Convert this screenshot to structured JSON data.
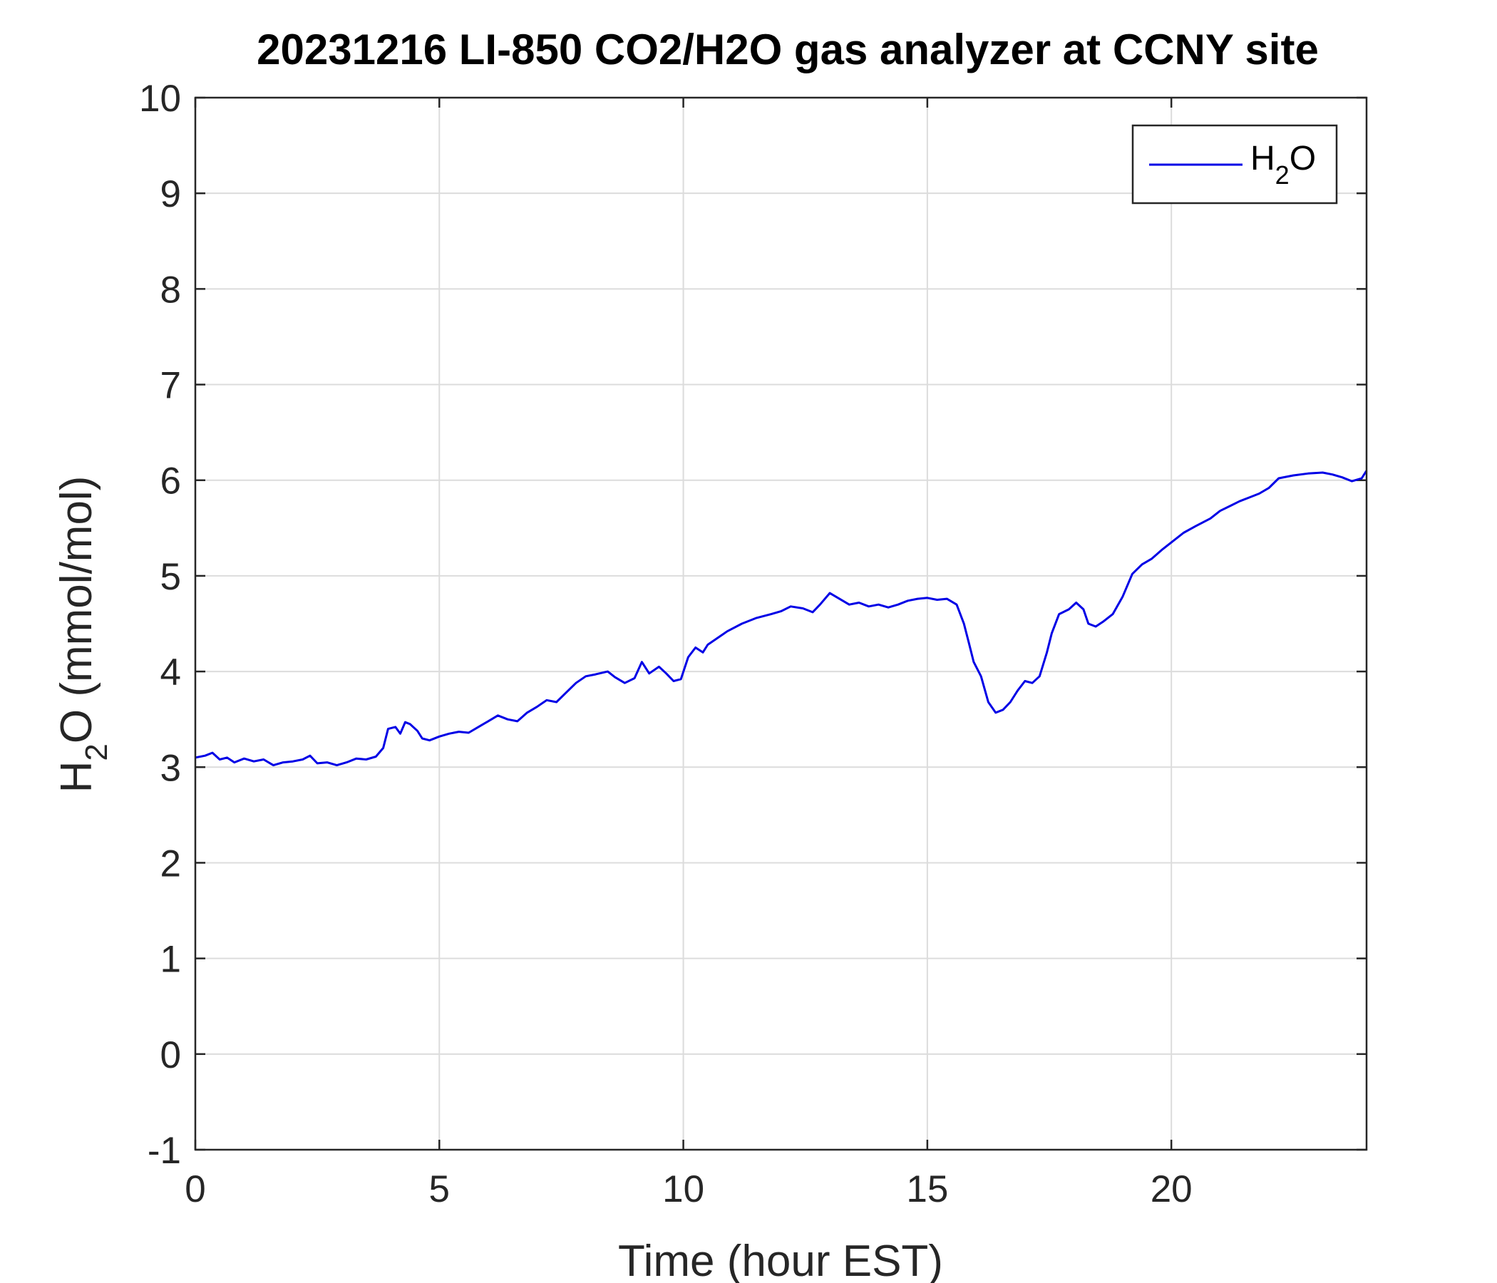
{
  "chart_data": {
    "type": "line",
    "title": "20231216 LI-850 CO2/H2O gas analyzer at CCNY site",
    "xlabel": "Time (hour EST)",
    "ylabel": {
      "main": "H",
      "sub": "2",
      "rest": "O (mmol/mol)"
    },
    "xlim": [
      0,
      24
    ],
    "ylim": [
      -1,
      10
    ],
    "xticks": [
      0,
      5,
      10,
      15,
      20
    ],
    "yticks": [
      -1,
      0,
      1,
      2,
      3,
      4,
      5,
      6,
      7,
      8,
      9,
      10
    ],
    "grid": true,
    "legend_position": "top-right",
    "series": [
      {
        "name": {
          "main": "H",
          "sub": "2",
          "rest": "O"
        },
        "color": "#0000e6",
        "points": [
          [
            0.0,
            3.1
          ],
          [
            0.2,
            3.12
          ],
          [
            0.35,
            3.15
          ],
          [
            0.5,
            3.08
          ],
          [
            0.65,
            3.1
          ],
          [
            0.8,
            3.05
          ],
          [
            1.0,
            3.09
          ],
          [
            1.2,
            3.06
          ],
          [
            1.4,
            3.08
          ],
          [
            1.6,
            3.02
          ],
          [
            1.8,
            3.05
          ],
          [
            2.0,
            3.06
          ],
          [
            2.2,
            3.08
          ],
          [
            2.35,
            3.12
          ],
          [
            2.5,
            3.04
          ],
          [
            2.7,
            3.05
          ],
          [
            2.9,
            3.02
          ],
          [
            3.1,
            3.05
          ],
          [
            3.3,
            3.09
          ],
          [
            3.5,
            3.08
          ],
          [
            3.7,
            3.11
          ],
          [
            3.85,
            3.2
          ],
          [
            3.95,
            3.4
          ],
          [
            4.1,
            3.42
          ],
          [
            4.2,
            3.35
          ],
          [
            4.3,
            3.47
          ],
          [
            4.4,
            3.45
          ],
          [
            4.55,
            3.38
          ],
          [
            4.65,
            3.3
          ],
          [
            4.8,
            3.28
          ],
          [
            5.0,
            3.32
          ],
          [
            5.2,
            3.35
          ],
          [
            5.4,
            3.37
          ],
          [
            5.6,
            3.36
          ],
          [
            5.8,
            3.42
          ],
          [
            6.0,
            3.48
          ],
          [
            6.2,
            3.54
          ],
          [
            6.4,
            3.5
          ],
          [
            6.6,
            3.48
          ],
          [
            6.8,
            3.57
          ],
          [
            7.0,
            3.63
          ],
          [
            7.2,
            3.7
          ],
          [
            7.4,
            3.68
          ],
          [
            7.6,
            3.78
          ],
          [
            7.8,
            3.88
          ],
          [
            8.0,
            3.95
          ],
          [
            8.2,
            3.97
          ],
          [
            8.45,
            4.0
          ],
          [
            8.6,
            3.94
          ],
          [
            8.8,
            3.88
          ],
          [
            9.0,
            3.93
          ],
          [
            9.15,
            4.1
          ],
          [
            9.3,
            3.98
          ],
          [
            9.5,
            4.05
          ],
          [
            9.65,
            3.98
          ],
          [
            9.8,
            3.9
          ],
          [
            9.95,
            3.92
          ],
          [
            10.1,
            4.15
          ],
          [
            10.25,
            4.25
          ],
          [
            10.4,
            4.2
          ],
          [
            10.5,
            4.28
          ],
          [
            10.7,
            4.35
          ],
          [
            10.9,
            4.42
          ],
          [
            11.2,
            4.5
          ],
          [
            11.5,
            4.56
          ],
          [
            11.8,
            4.6
          ],
          [
            12.0,
            4.63
          ],
          [
            12.2,
            4.68
          ],
          [
            12.45,
            4.66
          ],
          [
            12.65,
            4.62
          ],
          [
            12.8,
            4.7
          ],
          [
            13.0,
            4.82
          ],
          [
            13.2,
            4.76
          ],
          [
            13.4,
            4.7
          ],
          [
            13.6,
            4.72
          ],
          [
            13.8,
            4.68
          ],
          [
            14.0,
            4.7
          ],
          [
            14.2,
            4.67
          ],
          [
            14.4,
            4.7
          ],
          [
            14.6,
            4.74
          ],
          [
            14.8,
            4.76
          ],
          [
            15.0,
            4.77
          ],
          [
            15.2,
            4.75
          ],
          [
            15.4,
            4.76
          ],
          [
            15.6,
            4.7
          ],
          [
            15.75,
            4.5
          ],
          [
            15.85,
            4.3
          ],
          [
            15.95,
            4.1
          ],
          [
            16.1,
            3.95
          ],
          [
            16.25,
            3.68
          ],
          [
            16.4,
            3.57
          ],
          [
            16.55,
            3.6
          ],
          [
            16.7,
            3.68
          ],
          [
            16.85,
            3.8
          ],
          [
            17.0,
            3.9
          ],
          [
            17.15,
            3.88
          ],
          [
            17.3,
            3.95
          ],
          [
            17.45,
            4.2
          ],
          [
            17.55,
            4.4
          ],
          [
            17.7,
            4.6
          ],
          [
            17.9,
            4.65
          ],
          [
            18.05,
            4.72
          ],
          [
            18.2,
            4.65
          ],
          [
            18.3,
            4.5
          ],
          [
            18.45,
            4.47
          ],
          [
            18.6,
            4.52
          ],
          [
            18.8,
            4.6
          ],
          [
            19.0,
            4.78
          ],
          [
            19.2,
            5.02
          ],
          [
            19.4,
            5.12
          ],
          [
            19.6,
            5.18
          ],
          [
            19.8,
            5.27
          ],
          [
            20.0,
            5.35
          ],
          [
            20.25,
            5.45
          ],
          [
            20.5,
            5.52
          ],
          [
            20.8,
            5.6
          ],
          [
            21.0,
            5.68
          ],
          [
            21.2,
            5.73
          ],
          [
            21.4,
            5.78
          ],
          [
            21.6,
            5.82
          ],
          [
            21.8,
            5.86
          ],
          [
            22.0,
            5.92
          ],
          [
            22.2,
            6.02
          ],
          [
            22.5,
            6.05
          ],
          [
            22.8,
            6.07
          ],
          [
            23.1,
            6.08
          ],
          [
            23.3,
            6.06
          ],
          [
            23.5,
            6.03
          ],
          [
            23.7,
            5.99
          ],
          [
            23.9,
            6.02
          ],
          [
            24.0,
            6.1
          ]
        ]
      }
    ]
  }
}
